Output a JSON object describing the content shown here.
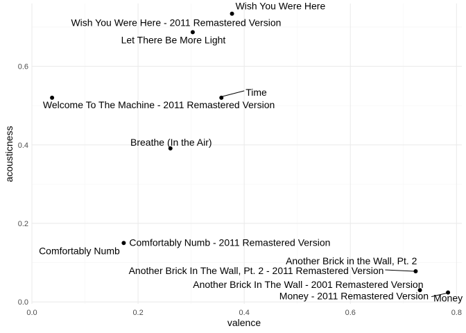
{
  "chart_data": {
    "type": "scatter",
    "title": "",
    "xlabel": "valence",
    "ylabel": "acousticness",
    "xlim": [
      0,
      0.81
    ],
    "ylim": [
      -0.005,
      0.76
    ],
    "x_ticks": [
      0.0,
      0.2,
      0.4,
      0.6,
      0.8
    ],
    "x_tick_labels": [
      "0.0",
      "0.2",
      "0.4",
      "0.6",
      "0.8"
    ],
    "y_ticks": [
      0.0,
      0.2,
      0.4,
      0.6
    ],
    "y_tick_labels": [
      "0.0",
      "0.2",
      "0.4",
      "0.6"
    ],
    "grid": true,
    "legend": "none",
    "colors": {
      "point": "#000000",
      "grid_major": "#ebebeb",
      "grid_minor": "#f5f5f5",
      "background": "#ffffff"
    },
    "points": [
      {
        "label": "Wish You Were Here",
        "x": 0.377,
        "y": 0.734
      },
      {
        "label": "Wish You Were Here - 2011 Remastered Version",
        "x": 0.303,
        "y": 0.687
      },
      {
        "label": "Let There Be More Light",
        "x": 0.303,
        "y": 0.687
      },
      {
        "label": "Time",
        "x": 0.357,
        "y": 0.52
      },
      {
        "label": "Welcome To The Machine - 2011 Remastered Version",
        "x": 0.038,
        "y": 0.52
      },
      {
        "label": "Breathe (In the Air)",
        "x": 0.261,
        "y": 0.391
      },
      {
        "label": "Comfortably Numb - 2011 Remastered Version",
        "x": 0.173,
        "y": 0.15
      },
      {
        "label": "Comfortably Numb",
        "x": 0.173,
        "y": 0.15
      },
      {
        "label": "Another Brick in the Wall, Pt. 2",
        "x": 0.723,
        "y": 0.078
      },
      {
        "label": "Another Brick In The Wall, Pt. 2 - 2011 Remastered Version",
        "x": 0.723,
        "y": 0.078
      },
      {
        "label": "Another Brick In The Wall - 2001 Remastered Version",
        "x": 0.731,
        "y": 0.03
      },
      {
        "label": "Money",
        "x": 0.784,
        "y": 0.024
      },
      {
        "label": "Money - 2011 Remastered Version",
        "x": 0.784,
        "y": 0.024
      }
    ]
  }
}
